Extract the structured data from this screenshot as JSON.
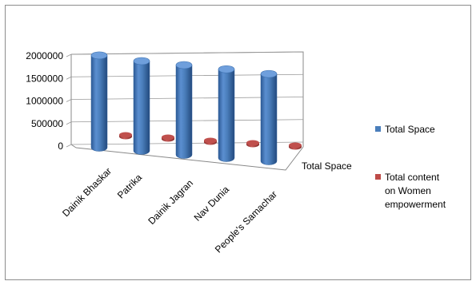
{
  "chart_data": {
    "type": "bar",
    "style": "3d-cylinder",
    "categories": [
      "Dainik Bhaskar",
      "Patrika",
      "Dainik Jagran",
      "Nav Dunia",
      "People's Samachar"
    ],
    "series": [
      {
        "name": "Total Space",
        "color": "#4a7ebb",
        "values": [
          1850000,
          1800000,
          1800000,
          1780000,
          1750000
        ]
      },
      {
        "name": "Total content on Women empowerment",
        "color": "#be4b48",
        "values": [
          15000,
          12000,
          10000,
          10000,
          9000
        ]
      }
    ],
    "depth_axis_label": "Total Space",
    "yticks": [
      "0",
      "500000",
      "1000000",
      "1500000",
      "2000000"
    ],
    "ylim": [
      0,
      2000000
    ],
    "grid": true,
    "legend_position": "right"
  }
}
